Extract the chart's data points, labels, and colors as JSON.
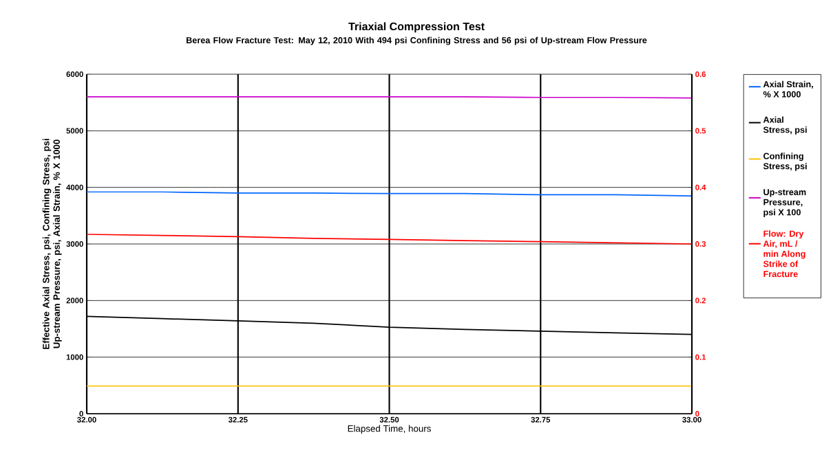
{
  "chart_data": {
    "type": "line",
    "title": "Triaxial Compression  Test",
    "subtitle": "Berea Flow Fracture Test: May 12, 2010  With 494 psi Confining  Stress and 56 psi of Up-stream Flow Pressure",
    "xlabel": "Elapsed Time, hours",
    "ylabel": "Effective Axial Stress, psi, Confining Stress, psi Up-stream Pressure, psi, Axial Strain, % X 1000",
    "x": [
      32.0,
      32.125,
      32.25,
      32.375,
      32.5,
      32.625,
      32.75,
      32.875,
      33.0
    ],
    "series": [
      {
        "name": "Axial Strain, % X 1000",
        "color": "#0066ff",
        "values": [
          3920,
          3920,
          3900,
          3900,
          3890,
          3890,
          3870,
          3870,
          3850
        ]
      },
      {
        "name": "Axial Stress, psi",
        "color": "#000000",
        "values": [
          1720,
          1680,
          1640,
          1600,
          1530,
          1490,
          1460,
          1430,
          1400
        ]
      },
      {
        "name": "Confining Stress, psi",
        "color": "#ffc000",
        "values": [
          490,
          490,
          490,
          490,
          490,
          490,
          490,
          490,
          490
        ]
      },
      {
        "name": "Up-stream Pressure, psi X 100",
        "color": "#cc00cc",
        "values": [
          5600,
          5600,
          5600,
          5600,
          5600,
          5600,
          5590,
          5590,
          5580
        ]
      },
      {
        "name": "Flow: Dry Air, mL / min Along Strike of Fracture",
        "color": "#ff0000",
        "axis": "y2",
        "values": [
          0.317,
          0.315,
          0.313,
          0.31,
          0.308,
          0.306,
          0.304,
          0.302,
          0.3
        ]
      }
    ],
    "xlim": [
      32.0,
      33.0
    ],
    "xticks": [
      {
        "value": 32.0,
        "label": "32.00"
      },
      {
        "value": 32.25,
        "label": "32.25"
      },
      {
        "value": 32.5,
        "label": "32.50"
      },
      {
        "value": 32.75,
        "label": "32.75"
      },
      {
        "value": 33.0,
        "label": "33.00"
      }
    ],
    "ylim": [
      0,
      6000
    ],
    "yticks": [
      0,
      1000,
      2000,
      3000,
      4000,
      5000,
      6000
    ],
    "y2lim": [
      0,
      0.6
    ],
    "y2ticks": [
      0,
      0.1,
      0.2,
      0.3,
      0.4,
      0.5,
      0.6
    ],
    "grid": true,
    "legend": "right",
    "line_style": "solid"
  }
}
